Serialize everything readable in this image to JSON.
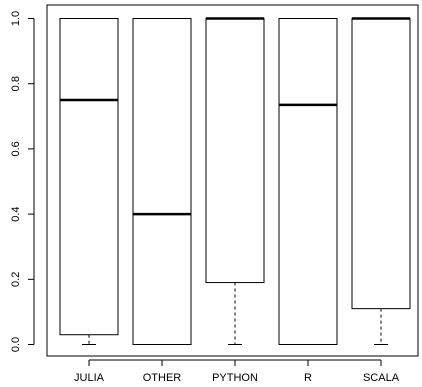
{
  "chart_data": {
    "type": "box",
    "title": "",
    "xlabel": "",
    "ylabel": "",
    "ylim": [
      0.0,
      1.0
    ],
    "yticks": [
      "0.0",
      "0.2",
      "0.4",
      "0.6",
      "0.8",
      "1.0"
    ],
    "grid": false,
    "categories": [
      "JULIA",
      "OTHER",
      "PYTHON",
      "R",
      "SCALA"
    ],
    "boxes": [
      {
        "category": "JULIA",
        "whisker_low": 0.0,
        "q1": 0.03,
        "median": 0.75,
        "q3": 1.0,
        "whisker_high": 1.0
      },
      {
        "category": "OTHER",
        "whisker_low": 0.0,
        "q1": 0.0,
        "median": 0.4,
        "q3": 1.0,
        "whisker_high": 1.0
      },
      {
        "category": "PYTHON",
        "whisker_low": 0.0,
        "q1": 0.19,
        "median": 1.0,
        "q3": 1.0,
        "whisker_high": 1.0
      },
      {
        "category": "R",
        "whisker_low": 0.0,
        "q1": 0.0,
        "median": 0.735,
        "q3": 1.0,
        "whisker_high": 1.0
      },
      {
        "category": "SCALA",
        "whisker_low": 0.0,
        "q1": 0.11,
        "median": 1.0,
        "q3": 1.0,
        "whisker_high": 1.0
      }
    ],
    "colors": {
      "line": "#000000",
      "background": "#ffffff"
    }
  }
}
